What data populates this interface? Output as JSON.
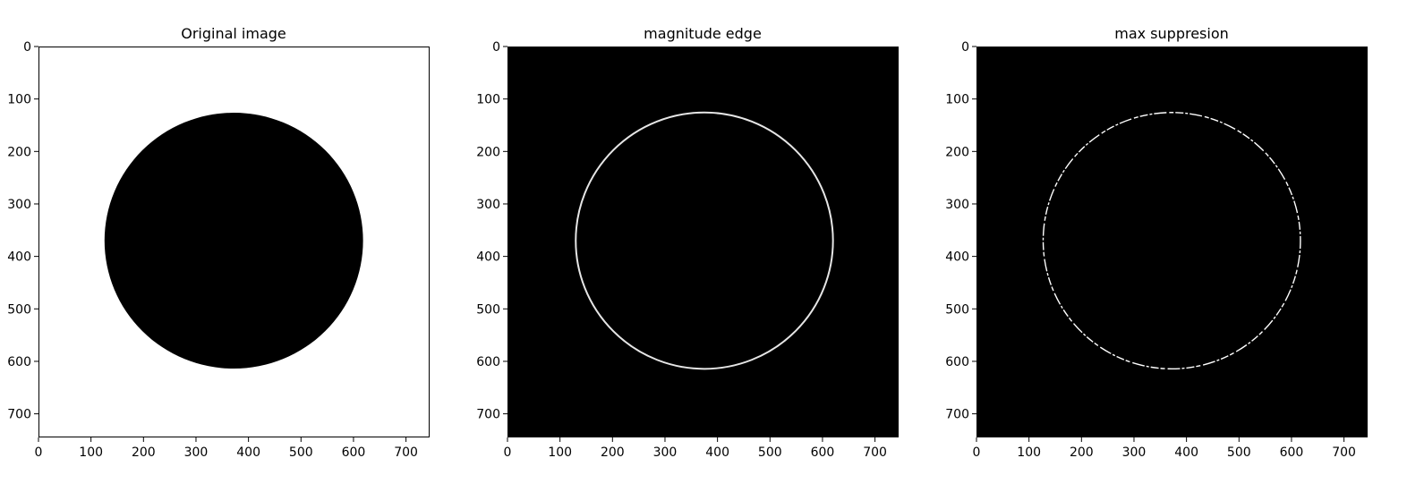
{
  "chart_data": [
    {
      "type": "image",
      "title": "Original image",
      "xlim": [
        0,
        745
      ],
      "ylim": [
        745,
        0
      ],
      "xticks": [
        0,
        100,
        200,
        300,
        400,
        500,
        600,
        700
      ],
      "yticks": [
        0,
        100,
        200,
        300,
        400,
        500,
        600,
        700
      ],
      "background_color": "#ffffff",
      "content": "filled-disk",
      "content_color": "#000000",
      "circle": {
        "cx": 372,
        "cy": 370,
        "r": 245
      }
    },
    {
      "type": "image",
      "title": "magnitude edge",
      "xlim": [
        0,
        745
      ],
      "ylim": [
        745,
        0
      ],
      "xticks": [
        0,
        100,
        200,
        300,
        400,
        500,
        600,
        700
      ],
      "yticks": [
        0,
        100,
        200,
        300,
        400,
        500,
        600,
        700
      ],
      "background_color": "#000000",
      "content": "ring",
      "content_color": "#e6e6e6",
      "circle": {
        "cx": 375,
        "cy": 370,
        "r": 245
      }
    },
    {
      "type": "image",
      "title": "max suppresion",
      "xlim": [
        0,
        745
      ],
      "ylim": [
        745,
        0
      ],
      "xticks": [
        0,
        100,
        200,
        300,
        400,
        500,
        600,
        700
      ],
      "yticks": [
        0,
        100,
        200,
        300,
        400,
        500,
        600,
        700
      ],
      "background_color": "#000000",
      "content": "dashed-ring",
      "content_color": "#ffffff",
      "circle": {
        "cx": 372,
        "cy": 370,
        "r": 245
      }
    }
  ]
}
